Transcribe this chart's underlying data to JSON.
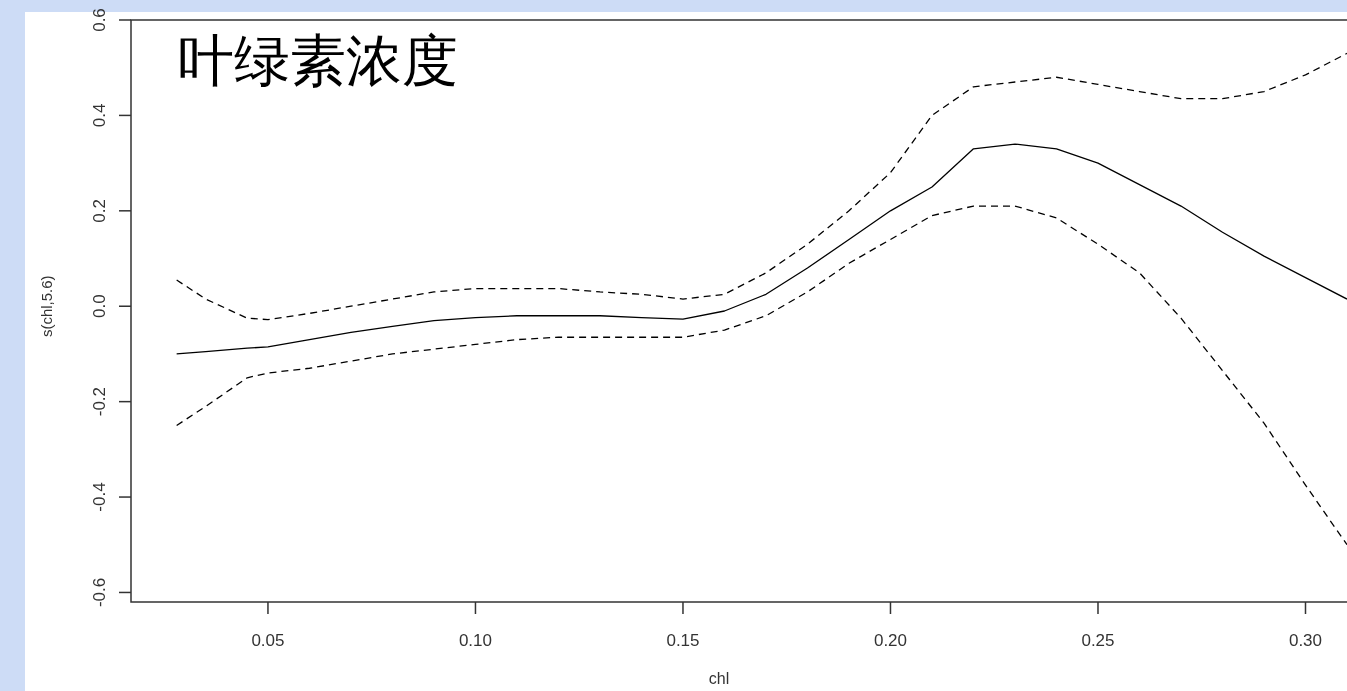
{
  "chart_data": {
    "type": "line",
    "title": "叶绿素浓度",
    "xlabel": "chl",
    "ylabel": "s(chl,5.6)",
    "xlim": [
      0.017,
      0.31
    ],
    "ylim": [
      -0.62,
      0.6
    ],
    "xticks": [
      0.05,
      {
        "value": 0.1,
        "label": "0.10"
      },
      0.15,
      {
        "value": 0.2,
        "label": "0.20"
      },
      0.25,
      {
        "value": 0.3,
        "label": "0.30"
      }
    ],
    "yticks": [
      -0.6,
      -0.4,
      -0.2,
      {
        "value": 0,
        "label": "0.0"
      },
      0.2,
      0.4,
      0.6
    ],
    "x": [
      0.028,
      0.035,
      0.045,
      0.05,
      0.06,
      0.07,
      0.08,
      0.09,
      0.1,
      0.11,
      0.12,
      0.13,
      0.14,
      0.15,
      0.16,
      0.17,
      0.18,
      0.19,
      0.2,
      0.21,
      0.22,
      0.23,
      0.24,
      0.25,
      0.26,
      0.27,
      0.28,
      0.29,
      0.3,
      0.31
    ],
    "series": [
      {
        "color": "#000000",
        "line_style": "solid",
        "values": [
          -0.1,
          -0.095,
          -0.088,
          -0.085,
          -0.07,
          -0.055,
          -0.042,
          -0.03,
          -0.024,
          -0.02,
          -0.02,
          -0.02,
          -0.024,
          -0.027,
          -0.01,
          0.025,
          0.08,
          0.14,
          0.2,
          0.25,
          0.33,
          0.34,
          0.33,
          0.3,
          0.255,
          0.21,
          0.155,
          0.105,
          0.06,
          0.015
        ]
      },
      {
        "color": "#000000",
        "line_style": "dashed",
        "values": [
          0.055,
          0.015,
          -0.025,
          -0.028,
          -0.015,
          0.0,
          0.015,
          0.03,
          0.037,
          0.037,
          0.037,
          0.03,
          0.025,
          0.015,
          0.025,
          0.07,
          0.13,
          0.2,
          0.28,
          0.4,
          0.46,
          0.47,
          0.48,
          0.465,
          0.45,
          0.435,
          0.435,
          0.45,
          0.485,
          0.53
        ]
      },
      {
        "color": "#000000",
        "line_style": "dashed",
        "values": [
          -0.25,
          -0.21,
          -0.15,
          -0.14,
          -0.13,
          -0.115,
          -0.1,
          -0.09,
          -0.08,
          -0.07,
          -0.065,
          -0.065,
          -0.065,
          -0.065,
          -0.05,
          -0.02,
          0.03,
          0.09,
          0.14,
          0.19,
          0.21,
          0.21,
          0.185,
          0.13,
          0.07,
          -0.025,
          -0.135,
          -0.245,
          -0.375,
          -0.5
        ]
      }
    ]
  }
}
